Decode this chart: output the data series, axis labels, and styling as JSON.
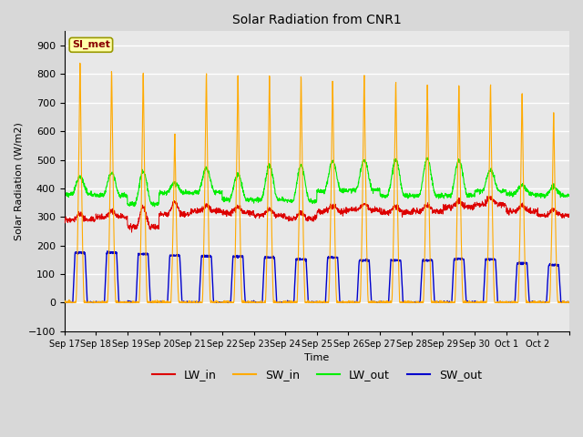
{
  "title": "Solar Radiation from CNR1",
  "ylabel": "Solar Radiation (W/m2)",
  "xlabel": "Time",
  "ylim": [
    -100,
    950
  ],
  "yticks": [
    -100,
    0,
    100,
    200,
    300,
    400,
    500,
    600,
    700,
    800,
    900
  ],
  "fig_bg_color": "#d8d8d8",
  "plot_bg_color": "#e8e8e8",
  "grid_color": "#ffffff",
  "legend_label": "SI_met",
  "colors": {
    "LW_in": "#dd0000",
    "SW_in": "#ffaa00",
    "LW_out": "#00ee00",
    "SW_out": "#0000cc"
  },
  "n_days": 16,
  "x_tick_labels": [
    "Sep 17",
    "Sep 18",
    "Sep 19",
    "Sep 20",
    "Sep 21",
    "Sep 22",
    "Sep 23",
    "Sep 24",
    "Sep 25",
    "Sep 26",
    "Sep 27",
    "Sep 28",
    "Sep 29",
    "Sep 30",
    "Oct 1",
    "Oct 2"
  ],
  "SW_in_peaks": [
    870,
    840,
    840,
    610,
    830,
    830,
    825,
    820,
    805,
    825,
    800,
    790,
    790,
    790,
    760,
    690
  ],
  "LW_out_peaks": [
    440,
    455,
    460,
    420,
    470,
    450,
    480,
    480,
    495,
    500,
    500,
    505,
    500,
    465,
    410,
    405
  ],
  "LW_in_base": [
    290,
    300,
    265,
    310,
    320,
    315,
    305,
    295,
    320,
    325,
    315,
    320,
    335,
    345,
    320,
    305
  ],
  "LW_in_day_bump": [
    20,
    20,
    70,
    40,
    20,
    20,
    20,
    20,
    20,
    20,
    20,
    20,
    20,
    20,
    20,
    20
  ],
  "SW_out_peaks": [
    175,
    175,
    170,
    165,
    162,
    162,
    158,
    152,
    158,
    148,
    148,
    148,
    152,
    152,
    138,
    132
  ],
  "LW_out_base": [
    378,
    375,
    345,
    385,
    385,
    360,
    360,
    355,
    390,
    395,
    375,
    375,
    375,
    390,
    380,
    375
  ]
}
